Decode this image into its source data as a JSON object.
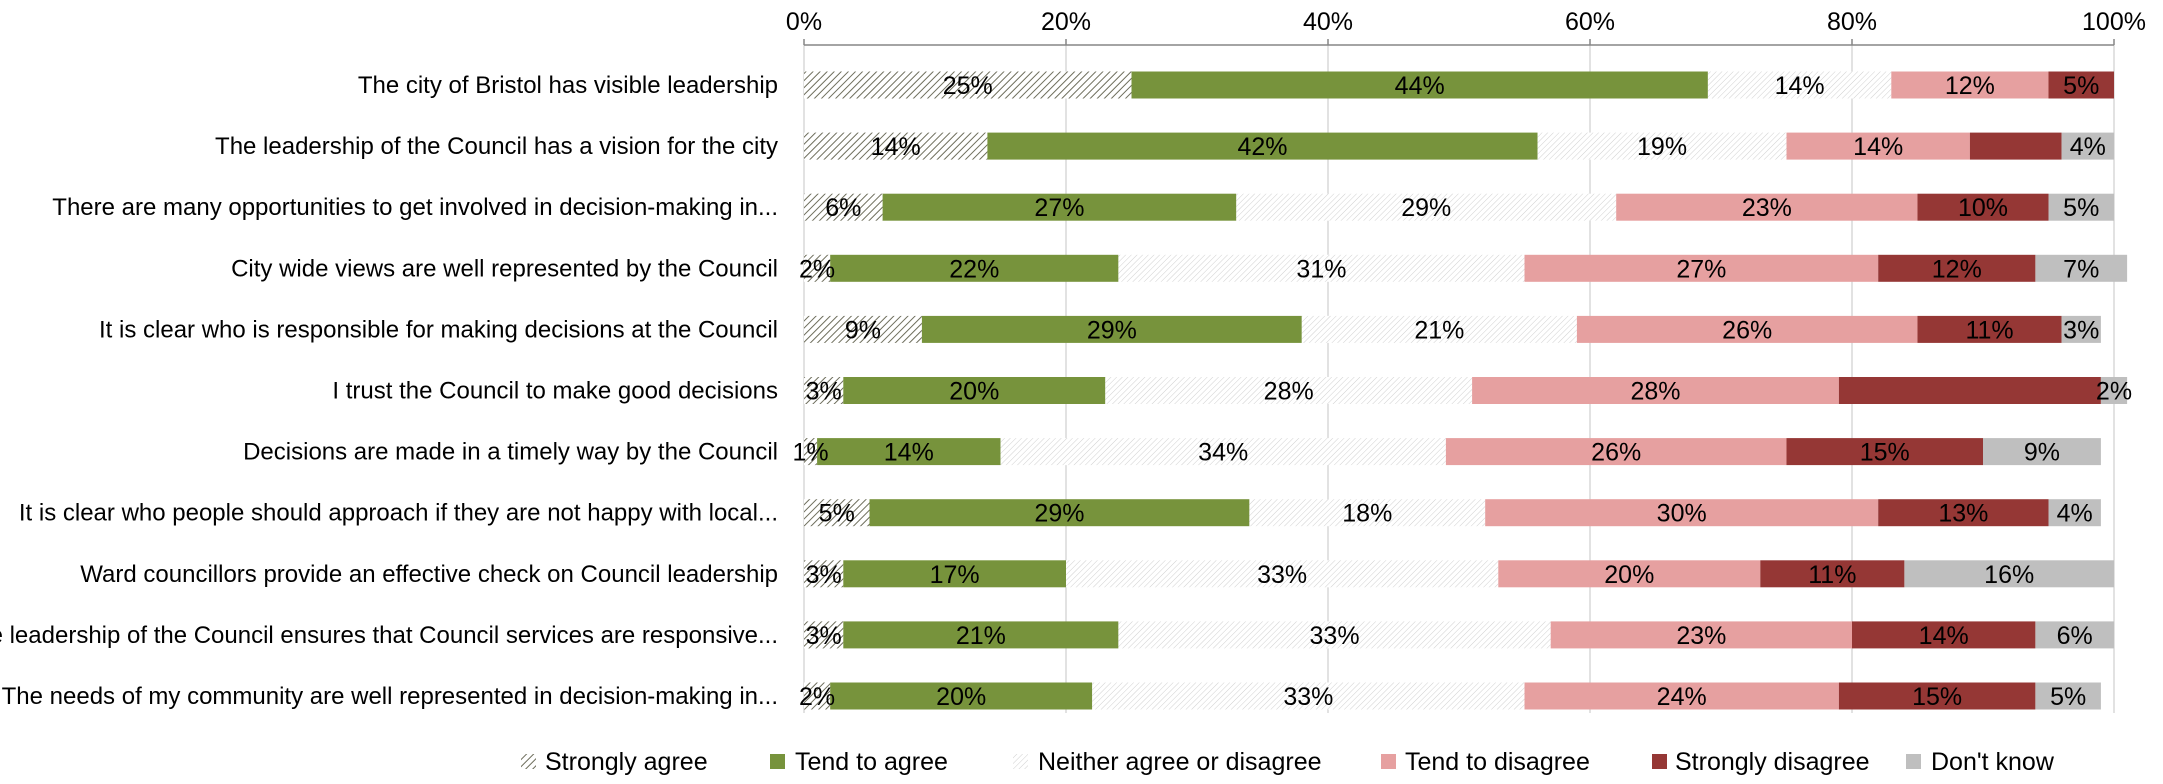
{
  "chart_data": {
    "type": "bar",
    "orientation": "horizontal",
    "stacked": true,
    "normalized": true,
    "categories": [
      "The city of Bristol has visible leadership",
      "The leadership of the Council has a vision for the city",
      "There are many opportunities to get involved in decision-making in...",
      "City wide views are well represented by the Council",
      "It is clear who is responsible for making decisions at the Council",
      "I trust the Council to make good decisions",
      "Decisions are made in a timely way by the Council",
      "It is clear who people should approach if they are not happy with local...",
      "Ward councillors provide an effective check on Council leadership",
      "The leadership of the Council ensures that Council services are responsive...",
      "The needs of my community are well represented in decision-making in..."
    ],
    "series": [
      {
        "name": "Strongly agree",
        "color": "#ffffff",
        "pattern": "diagonal-dark",
        "values": [
          25,
          14,
          6,
          2,
          9,
          3,
          1,
          5,
          3,
          3,
          2
        ],
        "labels": [
          "25%",
          "14%",
          "6%",
          "2%",
          "9%",
          "3%",
          "1%",
          "5%",
          "3%",
          "3%",
          "2%"
        ]
      },
      {
        "name": "Tend to agree",
        "color": "#77933c",
        "values": [
          44,
          42,
          27,
          22,
          29,
          20,
          14,
          29,
          17,
          21,
          20
        ],
        "labels": [
          "44%",
          "42%",
          "27%",
          "22%",
          "29%",
          "20%",
          "14%",
          "29%",
          "17%",
          "21%",
          "20%"
        ]
      },
      {
        "name": "Neither agree or disagree",
        "color": "#ffffff",
        "pattern": "diagonal-light",
        "values": [
          14,
          19,
          29,
          31,
          21,
          28,
          34,
          18,
          33,
          33,
          33
        ],
        "labels": [
          "14%",
          "19%",
          "29%",
          "31%",
          "21%",
          "28%",
          "34%",
          "18%",
          "33%",
          "33%",
          "33%"
        ]
      },
      {
        "name": "Tend to disagree",
        "color": "#e6a0a0",
        "values": [
          12,
          14,
          23,
          27,
          26,
          28,
          26,
          30,
          20,
          23,
          24
        ],
        "labels": [
          "12%",
          "14%",
          "23%",
          "27%",
          "26%",
          "28%",
          "26%",
          "30%",
          "20%",
          "23%",
          "24%"
        ]
      },
      {
        "name": "Strongly disagree",
        "color": "#953735",
        "values": [
          5,
          7,
          10,
          12,
          11,
          20,
          15,
          13,
          11,
          14,
          15
        ],
        "labels": [
          "5%",
          "",
          "10%",
          "12%",
          "11%",
          "",
          "15%",
          "13%",
          "11%",
          "14%",
          "15%"
        ]
      },
      {
        "name": "Don't know",
        "color": "#bfbfbf",
        "values": [
          0,
          4,
          5,
          7,
          3,
          2,
          9,
          4,
          16,
          6,
          5
        ],
        "labels": [
          "",
          "4%",
          "5%",
          "7%",
          "3%",
          "2%",
          "9%",
          "4%",
          "16%",
          "6%",
          "5%"
        ]
      }
    ],
    "xlim": [
      0,
      100
    ],
    "x_ticks": [
      "0%",
      "20%",
      "40%",
      "60%",
      "80%",
      "100%"
    ],
    "x_tick_values": [
      0,
      20,
      40,
      60,
      80,
      100
    ],
    "xaxis_position": "top",
    "grid": true,
    "legend_position": "bottom"
  }
}
